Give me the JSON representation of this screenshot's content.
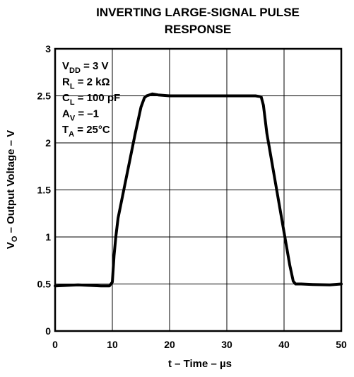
{
  "chart_data": {
    "type": "line",
    "title_lines": [
      "INVERTING LARGE-SIGNAL PULSE",
      "RESPONSE"
    ],
    "xlabel": "t – Time – µs",
    "ylabel": {
      "prefix": "V",
      "sub": "O",
      "rest": " – Output Voltage – V"
    },
    "xlim": [
      0,
      50
    ],
    "ylim": [
      0,
      3
    ],
    "x_ticks": [
      0,
      10,
      20,
      30,
      40,
      50
    ],
    "x_tick_labels": [
      "0",
      "10",
      "20",
      "30",
      "40",
      "50"
    ],
    "y_ticks": [
      0,
      0.5,
      1,
      1.5,
      2,
      2.5,
      3
    ],
    "y_tick_labels": [
      "0",
      "0.5",
      "1",
      "1.5",
      "2",
      "2.5",
      "3"
    ],
    "grid": true,
    "conditions": [
      {
        "main": "V",
        "sub": "DD",
        "rest": " = 3 V"
      },
      {
        "main": "R",
        "sub": "L",
        "rest": " = 2 kΩ"
      },
      {
        "main": "C",
        "sub": "L",
        "rest": " = 100 pF"
      },
      {
        "main": "A",
        "sub": "V",
        "rest": " = –1"
      },
      {
        "main": "T",
        "sub": "A",
        "rest": " = 25°C"
      }
    ],
    "series": [
      {
        "color": "#000000",
        "x": [
          0,
          2,
          4,
          6,
          8,
          9.5,
          10,
          10.3,
          10.6,
          11,
          12,
          13,
          14,
          15,
          15.6,
          16,
          17,
          18,
          20,
          25,
          30,
          35,
          36,
          36.4,
          37,
          38,
          39,
          40,
          41,
          41.6,
          42,
          43,
          45,
          48,
          50
        ],
        "y": [
          0.48,
          0.485,
          0.49,
          0.485,
          0.48,
          0.48,
          0.52,
          0.8,
          1.0,
          1.2,
          1.5,
          1.8,
          2.1,
          2.38,
          2.48,
          2.5,
          2.52,
          2.51,
          2.5,
          2.5,
          2.5,
          2.5,
          2.49,
          2.4,
          2.1,
          1.75,
          1.4,
          1.05,
          0.7,
          0.53,
          0.5,
          0.5,
          0.495,
          0.49,
          0.5
        ]
      }
    ]
  }
}
